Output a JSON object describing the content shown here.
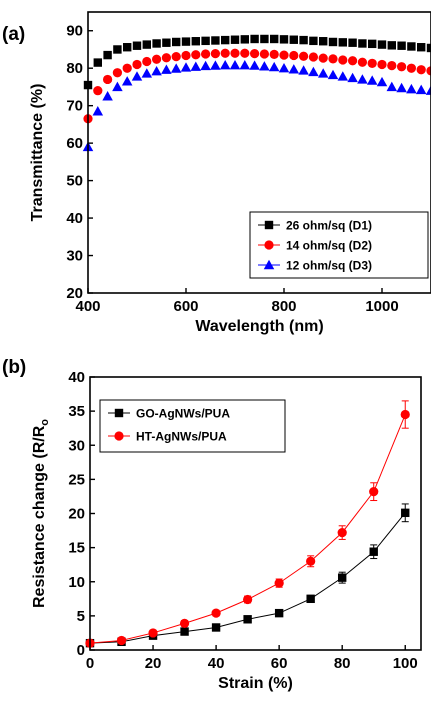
{
  "chart_data": [
    {
      "panel": "(a)",
      "type": "scatter",
      "xlabel": "Wavelength (nm)",
      "ylabel": "Transmittance (%)",
      "xlim": [
        400,
        1100
      ],
      "ylim": [
        20,
        95
      ],
      "xticks": [
        400,
        600,
        800,
        1000
      ],
      "yticks": [
        20,
        30,
        40,
        50,
        60,
        70,
        80,
        90
      ],
      "legend_position": "bottom-right",
      "series": [
        {
          "name": "26 ohm/sq  (D1)",
          "marker": "square",
          "color": "#000000",
          "x": [
            400,
            420,
            440,
            460,
            480,
            500,
            520,
            540,
            560,
            580,
            600,
            620,
            640,
            660,
            680,
            700,
            720,
            740,
            760,
            780,
            800,
            820,
            840,
            860,
            880,
            900,
            920,
            940,
            960,
            980,
            1000,
            1020,
            1040,
            1060,
            1080,
            1100
          ],
          "y": [
            75.5,
            81.5,
            83.5,
            85.0,
            85.6,
            86.0,
            86.3,
            86.6,
            86.8,
            87.0,
            87.1,
            87.2,
            87.3,
            87.4,
            87.5,
            87.6,
            87.7,
            87.8,
            87.8,
            87.8,
            87.7,
            87.6,
            87.5,
            87.3,
            87.2,
            87.0,
            86.9,
            86.8,
            86.6,
            86.5,
            86.3,
            86.1,
            86.0,
            85.8,
            85.6,
            85.4
          ]
        },
        {
          "name": "14 ohm/sq  (D2)",
          "marker": "circle",
          "color": "#ff0000",
          "x": [
            400,
            420,
            440,
            460,
            480,
            500,
            520,
            540,
            560,
            580,
            600,
            620,
            640,
            660,
            680,
            700,
            720,
            740,
            760,
            780,
            800,
            820,
            840,
            860,
            880,
            900,
            920,
            940,
            960,
            980,
            1000,
            1020,
            1040,
            1060,
            1080,
            1100
          ],
          "y": [
            66.5,
            74.0,
            77.0,
            78.8,
            80.0,
            81.0,
            81.8,
            82.4,
            82.8,
            83.1,
            83.4,
            83.6,
            83.8,
            83.9,
            84.0,
            84.0,
            84.0,
            83.9,
            83.8,
            83.7,
            83.5,
            83.4,
            83.2,
            83.0,
            82.7,
            82.5,
            82.2,
            82.0,
            81.6,
            81.3,
            81.0,
            80.7,
            80.4,
            80.0,
            79.6,
            79.3
          ]
        },
        {
          "name": "12 ohm/sq  (D3)",
          "marker": "triangle",
          "color": "#0000ff",
          "x": [
            400,
            420,
            440,
            460,
            480,
            500,
            520,
            540,
            560,
            580,
            600,
            620,
            640,
            660,
            680,
            700,
            720,
            740,
            760,
            780,
            800,
            820,
            840,
            860,
            880,
            900,
            920,
            940,
            960,
            980,
            1000,
            1020,
            1040,
            1060,
            1080,
            1100
          ],
          "y": [
            59.0,
            68.5,
            72.5,
            75.0,
            76.5,
            77.8,
            78.6,
            79.2,
            79.6,
            79.9,
            80.2,
            80.4,
            80.6,
            80.7,
            80.8,
            80.8,
            80.8,
            80.7,
            80.5,
            80.3,
            80.0,
            79.7,
            79.4,
            79.0,
            78.6,
            78.2,
            77.8,
            77.4,
            77.0,
            76.7,
            76.3,
            75.0,
            74.7,
            74.4,
            74.2,
            74.0
          ]
        }
      ]
    },
    {
      "panel": "(b)",
      "type": "line",
      "xlabel": "Strain (%)",
      "ylabel": "Resistance change (R/R",
      "ylabel_sub": "o",
      "xlim": [
        0,
        105
      ],
      "ylim": [
        0,
        40
      ],
      "xticks": [
        0,
        20,
        40,
        60,
        80,
        100
      ],
      "yticks": [
        0,
        5,
        10,
        15,
        20,
        25,
        30,
        35,
        40
      ],
      "legend_position": "top-left",
      "series": [
        {
          "name": "GO-AgNWs/PUA",
          "marker": "square",
          "color": "#000000",
          "x": [
            0,
            10,
            20,
            30,
            40,
            50,
            60,
            70,
            80,
            90,
            100
          ],
          "y": [
            1.0,
            1.2,
            2.1,
            2.7,
            3.3,
            4.5,
            5.4,
            7.5,
            10.6,
            14.4,
            20.1
          ],
          "err": [
            0.2,
            0.2,
            0.3,
            0.3,
            0.3,
            0.3,
            0.4,
            0.5,
            0.8,
            1.0,
            1.3
          ]
        },
        {
          "name": "HT-AgNWs/PUA",
          "marker": "circle",
          "color": "#ff0000",
          "x": [
            0,
            10,
            20,
            30,
            40,
            50,
            60,
            70,
            80,
            90,
            100
          ],
          "y": [
            1.0,
            1.4,
            2.5,
            3.9,
            5.4,
            7.4,
            9.8,
            13.0,
            17.2,
            23.2,
            34.5
          ],
          "err": [
            0.2,
            0.2,
            0.3,
            0.4,
            0.4,
            0.5,
            0.6,
            0.8,
            1.0,
            1.3,
            2.0
          ]
        }
      ]
    }
  ]
}
